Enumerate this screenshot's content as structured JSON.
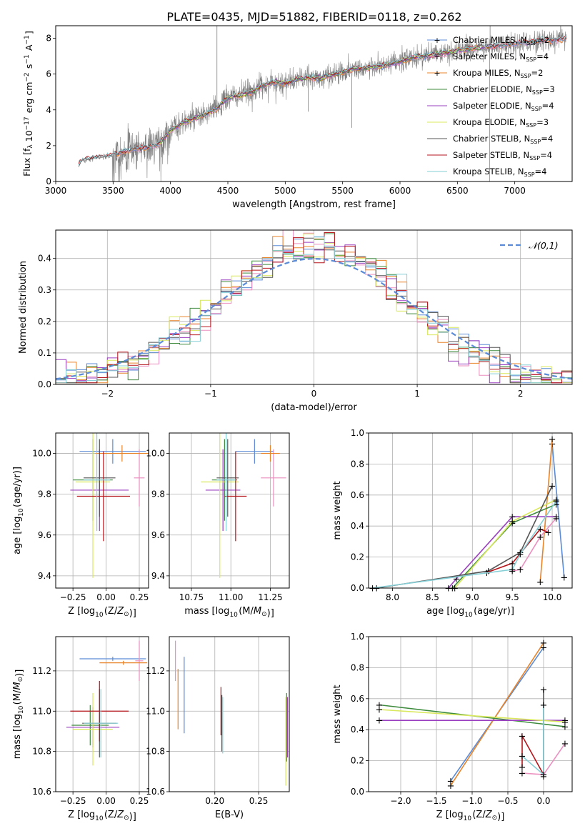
{
  "figure_title": "PLATE=0435, MJD=51882, FIBERID=0118, z=0.262",
  "colors": {
    "Chabrier MILES": "#5b8bd6",
    "Salpeter MILES": "#ea8fbf",
    "Kroupa MILES": "#e8842a",
    "Chabrier ELODIE": "#3e8b3e",
    "Salpeter ELODIE": "#9a3fbf",
    "Kroupa ELODIE": "#d9e85c",
    "Chabrier STELIB": "#555555",
    "Salpeter STELIB": "#b5161c",
    "Kroupa STELIB": "#86cfd6",
    "data": "#808080"
  },
  "chart_data": [
    {
      "id": "spectrum",
      "type": "line",
      "title": "",
      "xlabel": "wavelength [Angstrom, rest frame]",
      "ylabel": "Flux [f_λ 10^-17 erg cm^-2 s^-1 A^-1]",
      "xlim": [
        3000,
        7500
      ],
      "ylim": [
        0,
        8.7
      ],
      "xticks": [
        3000,
        3500,
        4000,
        4500,
        5000,
        5500,
        6000,
        6500,
        7000
      ],
      "yticks": [
        0,
        2,
        4,
        6,
        8
      ],
      "grid": false,
      "legend": "top-right",
      "legend_entries": [
        {
          "model": "Chabrier MILES",
          "label": "Chabrier MILES, N",
          "sub": "SSP",
          "tail": "=2"
        },
        {
          "model": "Salpeter MILES",
          "label": "Salpeter MILES, N",
          "sub": "SSP",
          "tail": "=4"
        },
        {
          "model": "Kroupa MILES",
          "label": "Kroupa MILES, N",
          "sub": "SSP",
          "tail": "=2"
        },
        {
          "model": "Chabrier ELODIE",
          "label": "Chabrier ELODIE, N",
          "sub": "SSP",
          "tail": "=3"
        },
        {
          "model": "Salpeter ELODIE",
          "label": "Salpeter ELODIE, N",
          "sub": "SSP",
          "tail": "=4"
        },
        {
          "model": "Kroupa ELODIE",
          "label": "Kroupa ELODIE, N",
          "sub": "SSP",
          "tail": "=3"
        },
        {
          "model": "Chabrier STELIB",
          "label": "Chabrier STELIB, N",
          "sub": "SSP",
          "tail": "=4"
        },
        {
          "model": "Salpeter STELIB",
          "label": "Salpeter STELIB, N",
          "sub": "SSP",
          "tail": "=4"
        },
        {
          "model": "Kroupa STELIB",
          "label": "Kroupa STELIB, N",
          "sub": "SSP",
          "tail": "=4"
        }
      ],
      "continuum": [
        [
          3200,
          0.9
        ],
        [
          3220,
          1.15
        ],
        [
          3300,
          1.3
        ],
        [
          3400,
          1.35
        ],
        [
          3500,
          1.45
        ],
        [
          3600,
          1.7
        ],
        [
          3700,
          1.85
        ],
        [
          3800,
          1.9
        ],
        [
          3900,
          2.1
        ],
        [
          4000,
          2.85
        ],
        [
          4100,
          3.25
        ],
        [
          4200,
          3.5
        ],
        [
          4300,
          3.7
        ],
        [
          4400,
          4.1
        ],
        [
          4500,
          4.65
        ],
        [
          4600,
          4.8
        ],
        [
          4700,
          5.0
        ],
        [
          4800,
          5.35
        ],
        [
          4900,
          5.55
        ],
        [
          5000,
          5.5
        ],
        [
          5100,
          5.7
        ],
        [
          5200,
          5.8
        ],
        [
          5300,
          5.75
        ],
        [
          5400,
          5.95
        ],
        [
          5500,
          6.1
        ],
        [
          5600,
          6.3
        ],
        [
          5700,
          6.35
        ],
        [
          5800,
          6.4
        ],
        [
          5900,
          6.5
        ],
        [
          6000,
          6.7
        ],
        [
          6100,
          6.9
        ],
        [
          6200,
          7.0
        ],
        [
          6300,
          7.1
        ],
        [
          6400,
          7.2
        ],
        [
          6500,
          7.3
        ],
        [
          6600,
          7.4
        ],
        [
          6700,
          7.5
        ],
        [
          6800,
          7.55
        ],
        [
          6900,
          7.6
        ],
        [
          7000,
          7.7
        ],
        [
          7100,
          7.75
        ],
        [
          7200,
          7.85
        ],
        [
          7300,
          7.9
        ],
        [
          7450,
          7.95
        ]
      ],
      "model_starts": {
        "Salpeter MILES": 3530,
        "Kroupa MILES": 3530,
        "Chabrier MILES": 3530,
        "Chabrier ELODIE": 3900,
        "Salpeter ELODIE": 3900,
        "Kroupa ELODIE": 3900,
        "Chabrier STELIB": 3200,
        "Salpeter STELIB": 3200,
        "Kroupa STELIB": 3200
      },
      "model_ends": {
        "Chabrier MILES": 7450,
        "Salpeter MILES": 7450,
        "Kroupa MILES": 7450,
        "Chabrier ELODIE": 6800,
        "Salpeter ELODIE": 6800,
        "Kroupa ELODIE": 6800,
        "Chabrier STELIB": 7450,
        "Salpeter STELIB": 7450,
        "Kroupa STELIB": 7450
      }
    },
    {
      "id": "residuals",
      "type": "line",
      "title": "",
      "xlabel": "(data-model)/error",
      "ylabel": "Normed distribution",
      "xlim": [
        -2.5,
        2.5
      ],
      "ylim": [
        0,
        0.49
      ],
      "xticks": [
        -2,
        -1,
        0,
        1,
        2
      ],
      "yticks": [
        0.0,
        0.1,
        0.2,
        0.3,
        0.4
      ],
      "grid": true,
      "legend": "top-right",
      "legend_label": "𝒩(0,1)",
      "bin_width": 0.1,
      "gaussian_sigma": 1.0
    },
    {
      "id": "age_vs_Z",
      "type": "scatter",
      "xlabel": "Z [log10(Z/Z⊙)]",
      "ylabel": "age [log10(age/yr)]",
      "xlim": [
        -0.38,
        0.32
      ],
      "ylim": [
        9.34,
        10.1
      ],
      "xticks": [
        -0.25,
        0.0,
        0.25
      ],
      "yticks": [
        9.4,
        9.6,
        9.8,
        10.0
      ],
      "grid": true,
      "points": [
        {
          "model": "Chabrier MILES",
          "x": 0.05,
          "xerr": 0.25,
          "y": 10.01,
          "yerr": 0.06
        },
        {
          "model": "Salpeter MILES",
          "x": 0.25,
          "xerr": 0.04,
          "y": 9.88,
          "yerr": 0.14
        },
        {
          "model": "Kroupa MILES",
          "x": 0.12,
          "xerr": 0.2,
          "y": 10.0,
          "yerr": 0.04
        },
        {
          "model": "Chabrier ELODIE",
          "x": -0.1,
          "xerr": 0.15,
          "y": 9.87,
          "yerr": 0.2
        },
        {
          "model": "Salpeter ELODIE",
          "x": -0.05,
          "xerr": 0.22,
          "y": 9.82,
          "yerr": 0.2
        },
        {
          "model": "Kroupa ELODIE",
          "x": -0.1,
          "xerr": 0.13,
          "y": 9.86,
          "yerr": 0.47
        },
        {
          "model": "Chabrier STELIB",
          "x": -0.05,
          "xerr": 0.12,
          "y": 9.88,
          "yerr": 0.19
        },
        {
          "model": "Salpeter STELIB",
          "x": -0.02,
          "xerr": 0.2,
          "y": 9.79,
          "yerr": 0.22
        },
        {
          "model": "Kroupa STELIB",
          "x": -0.07,
          "xerr": 0.1,
          "y": 9.87,
          "yerr": 0.25
        }
      ]
    },
    {
      "id": "age_vs_mass",
      "type": "scatter",
      "xlabel": "mass [log10(M/M⊙)]",
      "ylabel": "",
      "xlim": [
        10.61,
        11.37
      ],
      "ylim": [
        9.34,
        10.1
      ],
      "xticks": [
        10.75,
        11.0,
        11.25
      ],
      "yticks": [
        9.4,
        9.6,
        9.8,
        10.0
      ],
      "grid": true,
      "points": [
        {
          "model": "Chabrier MILES",
          "x": 11.15,
          "xerr": 0.12,
          "y": 10.01,
          "yerr": 0.06
        },
        {
          "model": "Salpeter MILES",
          "x": 11.27,
          "xerr": 0.08,
          "y": 9.88,
          "yerr": 0.14
        },
        {
          "model": "Kroupa MILES",
          "x": 11.25,
          "xerr": 0.06,
          "y": 10.0,
          "yerr": 0.04
        },
        {
          "model": "Chabrier ELODIE",
          "x": 10.96,
          "xerr": 0.08,
          "y": 9.87,
          "yerr": 0.2
        },
        {
          "model": "Salpeter ELODIE",
          "x": 10.95,
          "xerr": 0.11,
          "y": 9.82,
          "yerr": 0.2
        },
        {
          "model": "Kroupa ELODIE",
          "x": 10.93,
          "xerr": 0.12,
          "y": 9.86,
          "yerr": 0.47
        },
        {
          "model": "Chabrier STELIB",
          "x": 10.98,
          "xerr": 0.07,
          "y": 9.88,
          "yerr": 0.19
        },
        {
          "model": "Salpeter STELIB",
          "x": 11.03,
          "xerr": 0.07,
          "y": 9.79,
          "yerr": 0.22
        },
        {
          "model": "Kroupa STELIB",
          "x": 10.97,
          "xerr": 0.06,
          "y": 9.87,
          "yerr": 0.25
        }
      ]
    },
    {
      "id": "weight_vs_age",
      "type": "line",
      "xlabel": "age [log10(age/yr)]",
      "ylabel": "mass weight",
      "xlim": [
        7.7,
        10.25
      ],
      "ylim": [
        0,
        1
      ],
      "xticks": [
        8.0,
        8.5,
        9.0,
        9.5,
        10.0
      ],
      "yticks": [
        0.0,
        0.2,
        0.4,
        0.6,
        0.8,
        1.0
      ],
      "grid": true,
      "series": [
        {
          "model": "Chabrier MILES",
          "points": [
            [
              10.0,
              0.93
            ],
            [
              10.15,
              0.07
            ]
          ]
        },
        {
          "model": "Kroupa MILES",
          "points": [
            [
              9.85,
              0.04
            ],
            [
              10.0,
              0.96
            ]
          ]
        },
        {
          "model": "Salpeter MILES",
          "points": [
            [
              9.5,
              0.11
            ],
            [
              9.6,
              0.12
            ],
            [
              9.85,
              0.33
            ],
            [
              10.05,
              0.45
            ]
          ]
        },
        {
          "model": "Chabrier ELODIE",
          "points": [
            [
              8.75,
              0.0
            ],
            [
              9.5,
              0.42
            ],
            [
              10.05,
              0.54
            ]
          ]
        },
        {
          "model": "Salpeter ELODIE",
          "points": [
            [
              8.7,
              0.0
            ],
            [
              8.8,
              0.06
            ],
            [
              9.5,
              0.46
            ],
            [
              10.05,
              0.46
            ]
          ]
        },
        {
          "model": "Kroupa ELODIE",
          "points": [
            [
              8.78,
              0.0
            ],
            [
              9.5,
              0.43
            ],
            [
              10.05,
              0.57
            ]
          ]
        },
        {
          "model": "Chabrier STELIB",
          "points": [
            [
              7.8,
              0.0
            ],
            [
              9.2,
              0.11
            ],
            [
              9.6,
              0.23
            ],
            [
              10.0,
              0.66
            ]
          ]
        },
        {
          "model": "Salpeter STELIB",
          "points": [
            [
              9.18,
              0.1
            ],
            [
              9.5,
              0.16
            ],
            [
              9.85,
              0.38
            ],
            [
              9.95,
              0.36
            ]
          ]
        },
        {
          "model": "Kroupa STELIB",
          "points": [
            [
              7.75,
              0.0
            ],
            [
              9.5,
              0.12
            ],
            [
              9.6,
              0.22
            ],
            [
              10.05,
              0.56
            ]
          ]
        }
      ]
    },
    {
      "id": "mass_vs_Z",
      "type": "scatter",
      "xlabel": "Z [log10(Z/Z⊙)]",
      "ylabel": "mass [log10(M/M⊙)]",
      "xlim": [
        -0.38,
        0.32
      ],
      "ylim": [
        10.6,
        11.37
      ],
      "xticks": [
        -0.25,
        0.0,
        0.25
      ],
      "yticks": [
        10.6,
        10.8,
        11.0,
        11.2
      ],
      "grid": true,
      "points": [
        {
          "model": "Chabrier MILES",
          "x": 0.05,
          "xerr": 0.25,
          "y": 11.26,
          "yerr": 0.01
        },
        {
          "model": "Salpeter MILES",
          "x": 0.25,
          "xerr": 0.03,
          "y": 11.25,
          "yerr": 0.1
        },
        {
          "model": "Kroupa MILES",
          "x": 0.13,
          "xerr": 0.18,
          "y": 11.24,
          "yerr": 0.01
        },
        {
          "model": "Chabrier ELODIE",
          "x": -0.12,
          "xerr": 0.14,
          "y": 10.93,
          "yerr": 0.1
        },
        {
          "model": "Salpeter ELODIE",
          "x": -0.1,
          "xerr": 0.2,
          "y": 10.92,
          "yerr": 0.1
        },
        {
          "model": "Kroupa ELODIE",
          "x": -0.1,
          "xerr": 0.15,
          "y": 10.91,
          "yerr": 0.18
        },
        {
          "model": "Chabrier STELIB",
          "x": -0.05,
          "xerr": 0.13,
          "y": 10.94,
          "yerr": 0.17
        },
        {
          "model": "Salpeter STELIB",
          "x": -0.05,
          "xerr": 0.22,
          "y": 11.0,
          "yerr": 0.15
        },
        {
          "model": "Kroupa STELIB",
          "x": -0.04,
          "xerr": 0.13,
          "y": 10.94,
          "yerr": 0.17
        }
      ]
    },
    {
      "id": "mass_vs_ebv",
      "type": "scatter",
      "xlabel": "E(B-V)",
      "ylabel": "",
      "xlim": [
        0.148,
        0.285
      ],
      "ylim": [
        10.6,
        11.37
      ],
      "xticks": [
        0.2,
        0.25
      ],
      "yticks": [
        10.6,
        10.8,
        11.0,
        11.2
      ],
      "grid": true,
      "points": [
        {
          "model": "Chabrier MILES",
          "x": 0.165,
          "y": 11.08,
          "yerr": 0.19
        },
        {
          "model": "Salpeter MILES",
          "x": 0.155,
          "y": 11.25,
          "yerr": 0.1
        },
        {
          "model": "Kroupa MILES",
          "x": 0.158,
          "y": 11.06,
          "yerr": 0.15
        },
        {
          "model": "Chabrier ELODIE",
          "x": 0.282,
          "y": 10.92,
          "yerr": 0.17
        },
        {
          "model": "Salpeter ELODIE",
          "x": 0.283,
          "y": 10.92,
          "yerr": 0.15
        },
        {
          "model": "Kroupa ELODIE",
          "x": 0.281,
          "y": 10.85,
          "yerr": 0.22
        },
        {
          "model": "Chabrier STELIB",
          "x": 0.208,
          "y": 10.94,
          "yerr": 0.14
        },
        {
          "model": "Salpeter STELIB",
          "x": 0.207,
          "y": 11.0,
          "yerr": 0.12
        },
        {
          "model": "Kroupa STELIB",
          "x": 0.209,
          "y": 10.93,
          "yerr": 0.14
        }
      ]
    },
    {
      "id": "weight_vs_Z",
      "type": "line",
      "xlabel": "Z [log10(Z/Z⊙)]",
      "ylabel": "mass weight",
      "xlim": [
        -2.45,
        0.4
      ],
      "ylim": [
        0,
        1
      ],
      "xticks": [
        -2.0,
        -1.5,
        -1.0,
        -0.5,
        0.0
      ],
      "yticks": [
        0.0,
        0.2,
        0.4,
        0.6,
        0.8,
        1.0
      ],
      "grid": true,
      "series": [
        {
          "model": "Chabrier MILES",
          "points": [
            [
              -1.3,
              0.07
            ],
            [
              0.0,
              0.93
            ]
          ]
        },
        {
          "model": "Kroupa MILES",
          "points": [
            [
              -1.3,
              0.04
            ],
            [
              0.0,
              0.96
            ]
          ]
        },
        {
          "model": "Salpeter MILES",
          "points": [
            [
              -0.3,
              0.12
            ],
            [
              0.0,
              0.11
            ],
            [
              0.3,
              0.31
            ]
          ]
        },
        {
          "model": "Chabrier ELODIE",
          "points": [
            [
              -2.3,
              0.56
            ],
            [
              0.3,
              0.42
            ]
          ]
        },
        {
          "model": "Salpeter ELODIE",
          "points": [
            [
              -2.3,
              0.46
            ],
            [
              0.3,
              0.46
            ]
          ]
        },
        {
          "model": "Kroupa ELODIE",
          "points": [
            [
              -2.3,
              0.53
            ],
            [
              0.3,
              0.45
            ]
          ]
        },
        {
          "model": "Chabrier STELIB",
          "points": [
            [
              0.0,
              0.66
            ],
            [
              0.0,
              0.1
            ]
          ]
        },
        {
          "model": "Salpeter STELIB",
          "points": [
            [
              -0.3,
              0.16
            ],
            [
              -0.3,
              0.36
            ],
            [
              0.0,
              0.11
            ]
          ]
        },
        {
          "model": "Kroupa STELIB",
          "points": [
            [
              -0.3,
              0.23
            ],
            [
              0.0,
              0.11
            ],
            [
              0.0,
              0.56
            ]
          ]
        }
      ]
    }
  ]
}
